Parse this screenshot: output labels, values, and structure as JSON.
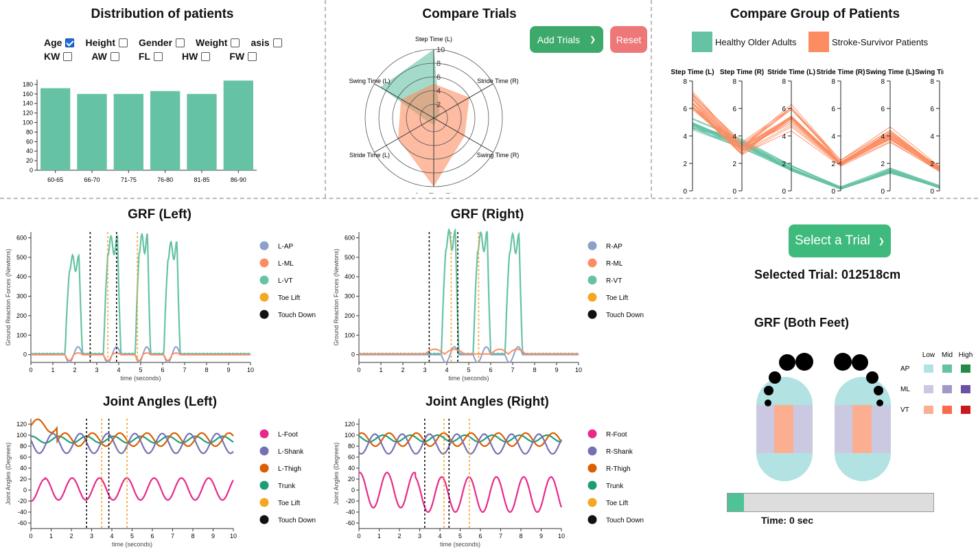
{
  "titles": {
    "distribution": "Distribution of patients",
    "compare_trials": "Compare Trials",
    "compare_group": "Compare Group of Patients",
    "grf_left": "GRF (Left)",
    "grf_right": "GRF (Right)",
    "joint_left": "Joint Angles (Left)",
    "joint_right": "Joint Angles (Right)",
    "grf_both": "GRF (Both Feet)"
  },
  "filters": [
    {
      "label": "Age",
      "checked": true
    },
    {
      "label": "Height",
      "checked": false
    },
    {
      "label": "Gender",
      "checked": false
    },
    {
      "label": "Weight",
      "checked": false
    },
    {
      "label": "asis",
      "checked": false
    },
    {
      "label": "KW",
      "checked": false
    },
    {
      "label": "AW",
      "checked": false
    },
    {
      "label": "FL",
      "checked": false
    },
    {
      "label": "HW",
      "checked": false
    },
    {
      "label": "FW",
      "checked": false
    }
  ],
  "buttons": {
    "add_trials": "Add Trials",
    "reset": "Reset",
    "select_trial": "Select a Trial"
  },
  "selected_trial": "Selected Trial: 012518cm",
  "time_label": "Time: 0 sec",
  "time_progress": 0.08,
  "group_legend": [
    {
      "name": "Healthy Older Adults",
      "color": "#66c2a5"
    },
    {
      "name": "Stroke-Survivor Patients",
      "color": "#fc8d62"
    }
  ],
  "heat_legend": {
    "levels": [
      "Low",
      "Mid",
      "High"
    ],
    "rows": [
      {
        "name": "AP",
        "colors": [
          "#b2e2e2",
          "#66c2a4",
          "#238b45"
        ]
      },
      {
        "name": "ML",
        "colors": [
          "#cbc9e2",
          "#9e9ac8",
          "#6a51a3"
        ]
      },
      {
        "name": "VT",
        "colors": [
          "#fcae91",
          "#fb6a4a",
          "#cb181d"
        ]
      }
    ]
  },
  "chart_data": [
    {
      "id": "distribution",
      "type": "bar",
      "categories": [
        "60-65",
        "66-70",
        "71-75",
        "76-80",
        "81-85",
        "86-90"
      ],
      "values": [
        172,
        160,
        160,
        166,
        160,
        188
      ],
      "ylim": [
        0,
        190
      ],
      "yticks": [
        0,
        20,
        40,
        60,
        80,
        100,
        120,
        140,
        160,
        180
      ],
      "color": "#66c2a5"
    },
    {
      "id": "compare_trials",
      "type": "radar",
      "axes": [
        "Step Time (L)",
        "Stride Time (R)",
        "Swing Time (R)",
        "Step Time (R)",
        "Stride Time (L)",
        "Swing Time (L)"
      ],
      "rlim": [
        0,
        10
      ],
      "rticks": [
        2,
        4,
        6,
        8,
        10
      ],
      "series": [
        {
          "values": [
            10,
            1.0,
            0.5,
            1.0,
            1.0,
            9.0
          ],
          "color": "#66c2a5"
        },
        {
          "values": [
            5.0,
            6.0,
            5.2,
            10,
            6.0,
            5.5
          ],
          "color": "#fc8d62"
        }
      ]
    },
    {
      "id": "compare_group",
      "type": "parallel",
      "axes": [
        "Step Time (L)",
        "Step Time (R)",
        "Stride Time (L)",
        "Stride Time (R)",
        "Swing Time (L)",
        "Swing Time (R)"
      ],
      "ylim": [
        0,
        8
      ],
      "yticks": [
        0,
        2,
        4,
        6,
        8
      ],
      "groups": [
        {
          "name": "Healthy Older Adults",
          "color": "#66c2a5",
          "mean": [
            4.9,
            3.5,
            1.7,
            0.2,
            1.5,
            0.3
          ],
          "spread": [
            0.6,
            0.5,
            0.3,
            0.15,
            0.25,
            0.15
          ],
          "count": 22
        },
        {
          "name": "Stroke-Survivor Patients",
          "color": "#fc8d62",
          "mean": [
            6.5,
            3.0,
            5.4,
            2.0,
            4.1,
            1.6
          ],
          "spread": [
            0.9,
            0.6,
            1.1,
            0.3,
            0.7,
            0.3
          ],
          "count": 24
        }
      ]
    },
    {
      "id": "grf_left",
      "type": "line",
      "xlabel": "time (seconds)",
      "ylabel": "Ground Reaction Forces (Newtons)",
      "xlim": [
        0,
        10
      ],
      "ylim": [
        -40,
        630
      ],
      "xticks": [
        0,
        1,
        2,
        3,
        4,
        5,
        6,
        7,
        8,
        9,
        10
      ],
      "yticks": [
        0,
        100,
        200,
        300,
        400,
        500,
        600
      ],
      "series": [
        {
          "name": "L-AP",
          "color": "#8da0cb"
        },
        {
          "name": "L-ML",
          "color": "#fc8d62"
        },
        {
          "name": "L-VT",
          "color": "#66c2a5"
        },
        {
          "name": "Toe Lift",
          "color": "#f5a623",
          "marker": "dotted"
        },
        {
          "name": "Touch Down",
          "color": "#111111",
          "marker": "dotted"
        }
      ],
      "vt_peaks": [
        [
          1.55,
          2.35,
          510
        ],
        [
          3.3,
          4.1,
          610
        ],
        [
          4.75,
          5.45,
          620
        ],
        [
          6.05,
          6.8,
          580
        ]
      ],
      "toe_lift": [
        3.5,
        4.85
      ],
      "touch_down": [
        2.7,
        3.9
      ]
    },
    {
      "id": "grf_right",
      "type": "line",
      "xlabel": "time (seconds)",
      "ylabel": "Ground Reaction Forces (Newtons)",
      "xlim": [
        0,
        10
      ],
      "ylim": [
        -40,
        630
      ],
      "xticks": [
        0,
        1,
        2,
        3,
        4,
        5,
        6,
        7,
        8,
        9,
        10
      ],
      "yticks": [
        0,
        100,
        200,
        300,
        400,
        500,
        600
      ],
      "series": [
        {
          "name": "R-AP",
          "color": "#8da0cb"
        },
        {
          "name": "R-ML",
          "color": "#fc8d62"
        },
        {
          "name": "R-VT",
          "color": "#66c2a5"
        },
        {
          "name": "Toe Lift",
          "color": "#f5a623",
          "marker": "dotted"
        },
        {
          "name": "Touch Down",
          "color": "#111111",
          "marker": "dotted"
        }
      ],
      "vt_peaks": [
        [
          3.75,
          4.55,
          640
        ],
        [
          5.2,
          6.0,
          630
        ],
        [
          6.65,
          7.45,
          620
        ]
      ],
      "toe_lift": [
        4.2,
        5.45
      ],
      "touch_down": [
        3.2,
        4.5
      ]
    },
    {
      "id": "joint_left",
      "type": "line",
      "xlabel": "time (seconds)",
      "ylabel": "Joint Angles (Degrees)",
      "xlim": [
        0,
        10
      ],
      "ylim": [
        -70,
        130
      ],
      "xticks": [
        0,
        1,
        2,
        3,
        4,
        5,
        6,
        7,
        8,
        9,
        10
      ],
      "yticks": [
        -60,
        -40,
        -20,
        0,
        20,
        40,
        60,
        80,
        100,
        120
      ],
      "series": [
        {
          "name": "L-Foot",
          "color": "#e7298a"
        },
        {
          "name": "L-Shank",
          "color": "#7570b3"
        },
        {
          "name": "L-Thigh",
          "color": "#d95f02"
        },
        {
          "name": "Trunk",
          "color": "#1b9e77"
        },
        {
          "name": "Toe Lift",
          "color": "#f5a623",
          "marker": "dotted"
        },
        {
          "name": "Touch Down",
          "color": "#111111",
          "marker": "dotted"
        }
      ],
      "toe_lift": [
        3.5,
        4.75
      ],
      "touch_down": [
        2.75,
        3.85
      ]
    },
    {
      "id": "joint_right",
      "type": "line",
      "xlabel": "time (seconds)",
      "ylabel": "Joint Angles (Degrees)",
      "xlim": [
        0,
        10
      ],
      "ylim": [
        -70,
        130
      ],
      "xticks": [
        0,
        1,
        2,
        3,
        4,
        5,
        6,
        7,
        8,
        9,
        10
      ],
      "yticks": [
        -60,
        -40,
        -20,
        0,
        20,
        40,
        60,
        80,
        100,
        120
      ],
      "series": [
        {
          "name": "R-Foot",
          "color": "#e7298a"
        },
        {
          "name": "R-Shank",
          "color": "#7570b3"
        },
        {
          "name": "R-Thigh",
          "color": "#d95f02"
        },
        {
          "name": "Trunk",
          "color": "#1b9e77"
        },
        {
          "name": "Toe Lift",
          "color": "#f5a623",
          "marker": "dotted"
        },
        {
          "name": "Touch Down",
          "color": "#111111",
          "marker": "dotted"
        }
      ],
      "toe_lift": [
        4.2,
        5.45
      ],
      "touch_down": [
        3.25,
        4.45
      ]
    }
  ]
}
